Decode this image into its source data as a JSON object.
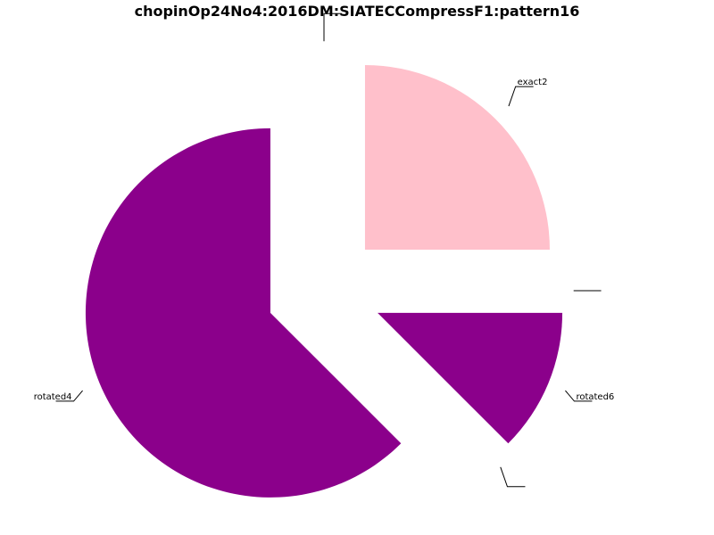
{
  "chart_data": {
    "type": "pie",
    "title": "chopinOp24No4:2016DM:SIATECCompressF1:pattern16",
    "start_angle_deg": 90,
    "direction": "counterclockwise",
    "exploded": true,
    "slices": [
      {
        "label": "",
        "value": 0,
        "color": "#8B008B"
      },
      {
        "label": "rotated4",
        "value": 62.5,
        "color": "#8B008B"
      },
      {
        "label": "",
        "value": 0,
        "color": "#8B008B"
      },
      {
        "label": "rotated6",
        "value": 12.5,
        "color": "#8B008B"
      },
      {
        "label": "",
        "value": 0,
        "color": "#8B008B"
      },
      {
        "label": "exact2",
        "value": 25,
        "color": "#FFC0CB"
      }
    ]
  }
}
